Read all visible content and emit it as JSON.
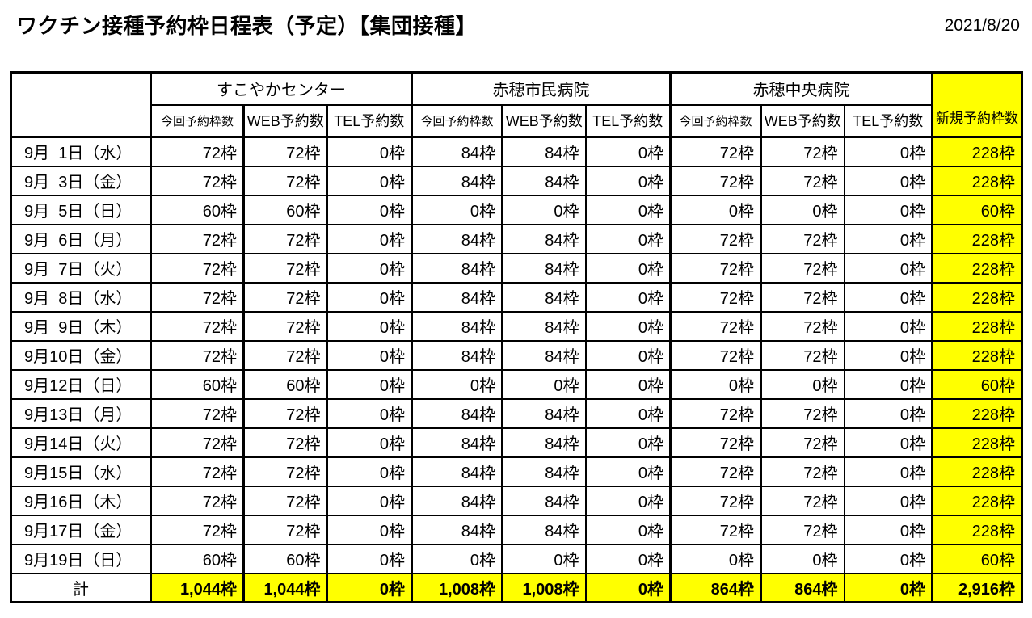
{
  "page": {
    "title": "ワクチン接種予約枠日程表（予定）【集団接種】",
    "date": "2021/8/20"
  },
  "colors": {
    "highlight": "#FFFF00",
    "border": "#000000",
    "text": "#000000",
    "background": "#FFFFFF"
  },
  "table": {
    "groups": [
      {
        "name": "すこやかセンター"
      },
      {
        "name": "赤穂市民病院"
      },
      {
        "name": "赤穂中央病院"
      }
    ],
    "sub_headers": [
      "今回予約枠数",
      "WEB予約数",
      "TEL予約数"
    ],
    "new_slots_header": "新規予約枠数",
    "rows": [
      {
        "date": "9月  1日（水）",
        "values": [
          "72枠",
          "72枠",
          "0枠",
          "84枠",
          "84枠",
          "0枠",
          "72枠",
          "72枠",
          "0枠",
          "228枠"
        ]
      },
      {
        "date": "9月  3日（金）",
        "values": [
          "72枠",
          "72枠",
          "0枠",
          "84枠",
          "84枠",
          "0枠",
          "72枠",
          "72枠",
          "0枠",
          "228枠"
        ]
      },
      {
        "date": "9月  5日（日）",
        "values": [
          "60枠",
          "60枠",
          "0枠",
          "0枠",
          "0枠",
          "0枠",
          "0枠",
          "0枠",
          "0枠",
          "60枠"
        ]
      },
      {
        "date": "9月  6日（月）",
        "values": [
          "72枠",
          "72枠",
          "0枠",
          "84枠",
          "84枠",
          "0枠",
          "72枠",
          "72枠",
          "0枠",
          "228枠"
        ]
      },
      {
        "date": "9月  7日（火）",
        "values": [
          "72枠",
          "72枠",
          "0枠",
          "84枠",
          "84枠",
          "0枠",
          "72枠",
          "72枠",
          "0枠",
          "228枠"
        ]
      },
      {
        "date": "9月  8日（水）",
        "values": [
          "72枠",
          "72枠",
          "0枠",
          "84枠",
          "84枠",
          "0枠",
          "72枠",
          "72枠",
          "0枠",
          "228枠"
        ]
      },
      {
        "date": "9月  9日（木）",
        "values": [
          "72枠",
          "72枠",
          "0枠",
          "84枠",
          "84枠",
          "0枠",
          "72枠",
          "72枠",
          "0枠",
          "228枠"
        ]
      },
      {
        "date": "9月10日（金）",
        "values": [
          "72枠",
          "72枠",
          "0枠",
          "84枠",
          "84枠",
          "0枠",
          "72枠",
          "72枠",
          "0枠",
          "228枠"
        ]
      },
      {
        "date": "9月12日（日）",
        "values": [
          "60枠",
          "60枠",
          "0枠",
          "0枠",
          "0枠",
          "0枠",
          "0枠",
          "0枠",
          "0枠",
          "60枠"
        ]
      },
      {
        "date": "9月13日（月）",
        "values": [
          "72枠",
          "72枠",
          "0枠",
          "84枠",
          "84枠",
          "0枠",
          "72枠",
          "72枠",
          "0枠",
          "228枠"
        ]
      },
      {
        "date": "9月14日（火）",
        "values": [
          "72枠",
          "72枠",
          "0枠",
          "84枠",
          "84枠",
          "0枠",
          "72枠",
          "72枠",
          "0枠",
          "228枠"
        ]
      },
      {
        "date": "9月15日（水）",
        "values": [
          "72枠",
          "72枠",
          "0枠",
          "84枠",
          "84枠",
          "0枠",
          "72枠",
          "72枠",
          "0枠",
          "228枠"
        ]
      },
      {
        "date": "9月16日（木）",
        "values": [
          "72枠",
          "72枠",
          "0枠",
          "84枠",
          "84枠",
          "0枠",
          "72枠",
          "72枠",
          "0枠",
          "228枠"
        ]
      },
      {
        "date": "9月17日（金）",
        "values": [
          "72枠",
          "72枠",
          "0枠",
          "84枠",
          "84枠",
          "0枠",
          "72枠",
          "72枠",
          "0枠",
          "228枠"
        ]
      },
      {
        "date": "9月19日（日）",
        "values": [
          "60枠",
          "60枠",
          "0枠",
          "0枠",
          "0枠",
          "0枠",
          "0枠",
          "0枠",
          "0枠",
          "60枠"
        ]
      }
    ],
    "total": {
      "label": "計",
      "values": [
        "1,044枠",
        "1,044枠",
        "0枠",
        "1,008枠",
        "1,008枠",
        "0枠",
        "864枠",
        "864枠",
        "0枠",
        "2,916枠"
      ]
    }
  }
}
